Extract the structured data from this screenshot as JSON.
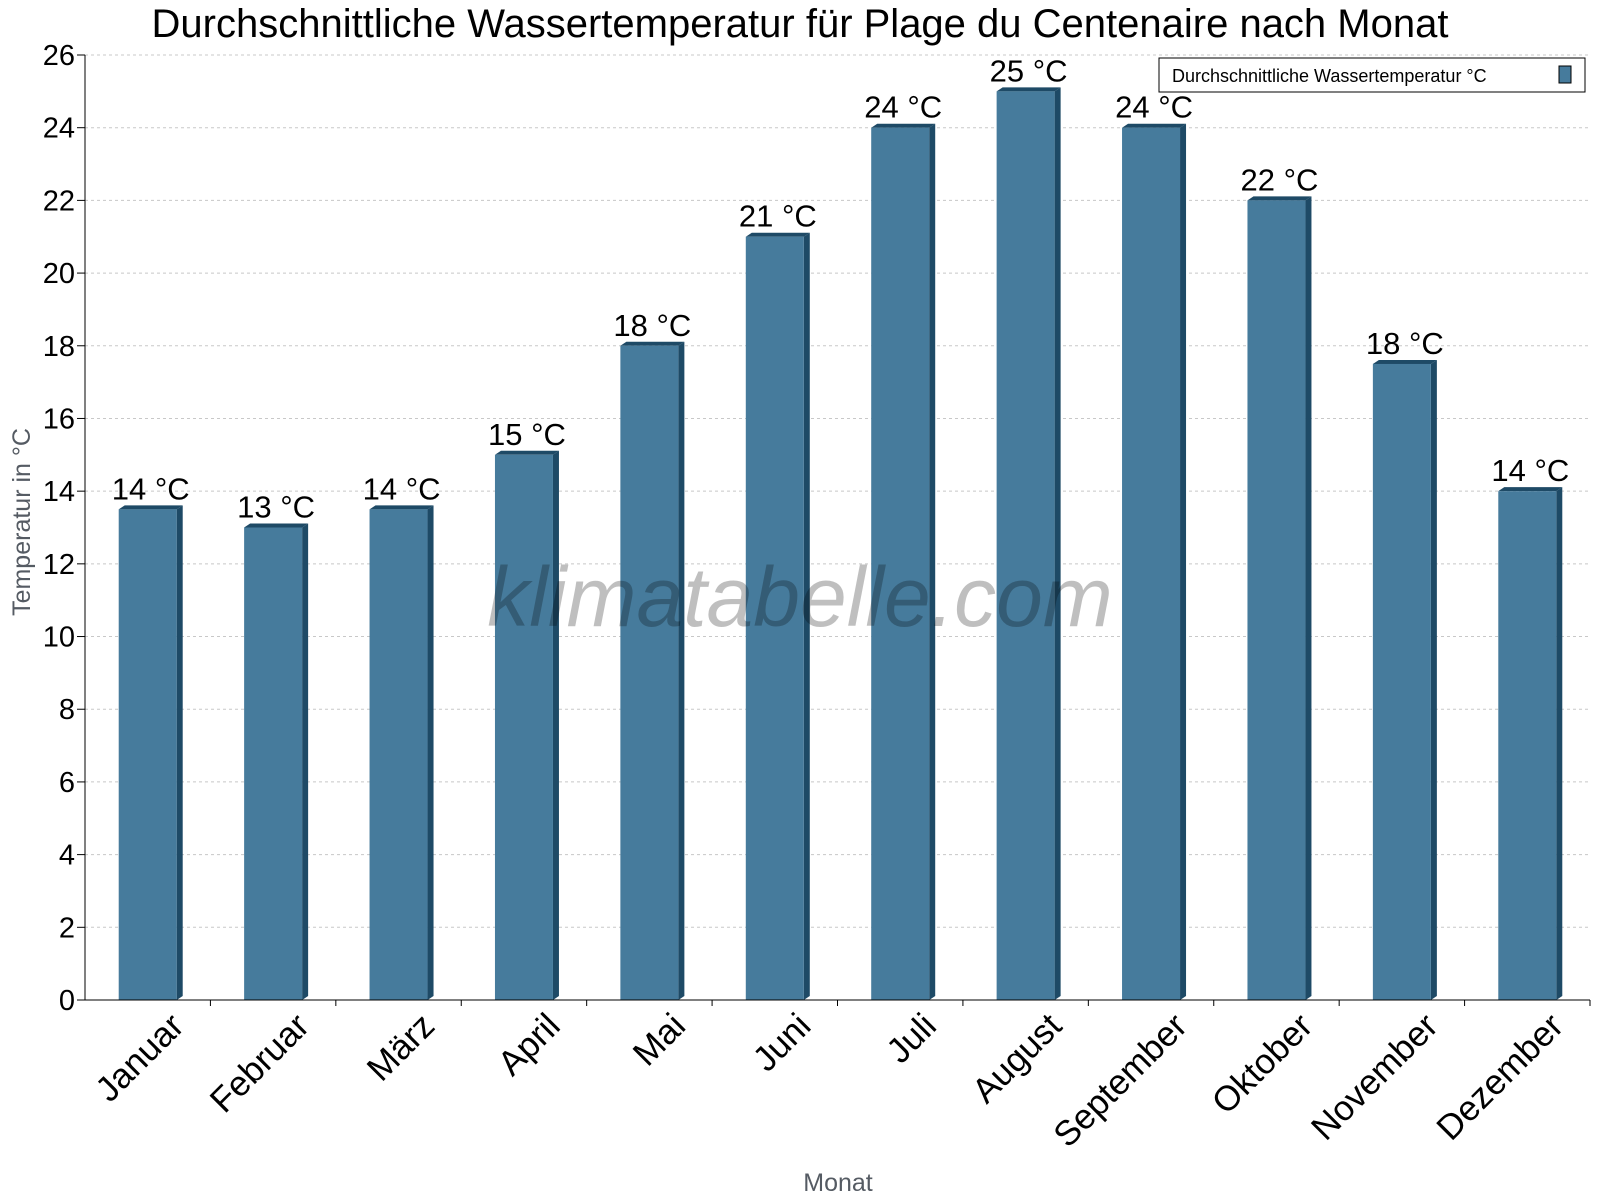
{
  "chart_data": {
    "type": "bar",
    "title": "Durchschnittliche Wassertemperatur für Plage du Centenaire nach Monat",
    "xlabel": "Monat",
    "ylabel": "Temperatur in °C",
    "categories": [
      "Januar",
      "Februar",
      "März",
      "April",
      "Mai",
      "Juni",
      "Juli",
      "August",
      "September",
      "Oktober",
      "November",
      "Dezember"
    ],
    "series": [
      {
        "name": "Durchschnittliche Wassertemperatur °C",
        "values": [
          13.5,
          13,
          13.5,
          15,
          18,
          21,
          24,
          25,
          24,
          22,
          17.5,
          14
        ],
        "labels": [
          "14 °C",
          "13 °C",
          "14 °C",
          "15 °C",
          "18 °C",
          "21 °C",
          "24 °C",
          "25 °C",
          "24 °C",
          "22 °C",
          "18 °C",
          "14 °C"
        ]
      }
    ],
    "ylim": [
      0,
      26
    ],
    "yticks": [
      0,
      2,
      4,
      6,
      8,
      10,
      12,
      14,
      16,
      18,
      20,
      22,
      24,
      26
    ],
    "grid": true,
    "legend_position": "top-right",
    "colors": {
      "bar": "#467b9c",
      "bar_side": "#1e4a66",
      "bar_top": "#1e4a66",
      "grid": "#c8c8c8",
      "axis_title": "#555b63"
    }
  },
  "watermark": "klimatabelle.com"
}
